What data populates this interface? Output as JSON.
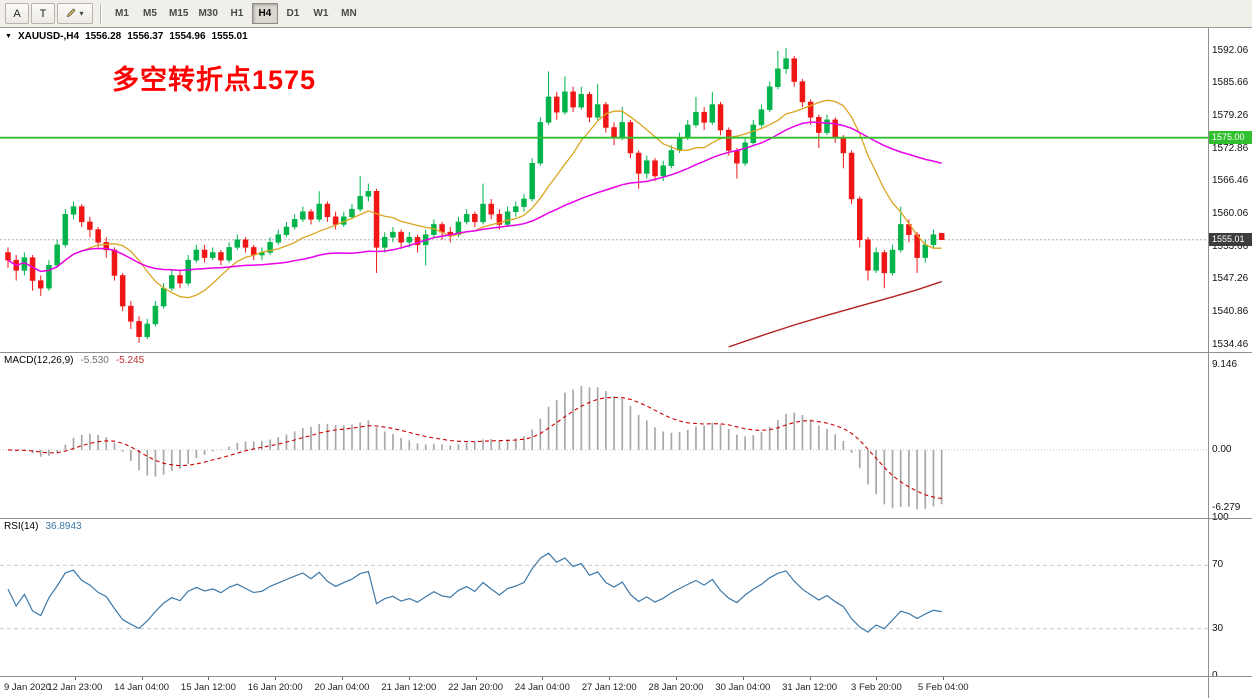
{
  "toolbar": {
    "cursor_button_label": "A",
    "text_button_label": "T",
    "timeframes": [
      "M1",
      "M5",
      "M15",
      "M30",
      "H1",
      "H4",
      "D1",
      "W1",
      "MN"
    ],
    "active_timeframe": "H4"
  },
  "chart": {
    "symbol_header": "XAUUSD-,H4",
    "ohlc": {
      "open": "1556.28",
      "high": "1556.37",
      "low": "1554.96",
      "close": "1555.01"
    },
    "annotation": {
      "text": "多空转折点1575",
      "color": "#FF0000"
    },
    "hline": {
      "label": "1575.00"
    },
    "current_price": {
      "label": "1555.01"
    }
  },
  "macd": {
    "title": "MACD(12,26,9)",
    "value_macd": "-5.530",
    "value_signal": "-5.245"
  },
  "rsi": {
    "title": "RSI(14)",
    "value": "36.8943"
  },
  "chart_data": {
    "type": "candlestick",
    "symbol": "XAUUSD-",
    "timeframe": "H4",
    "candles": [
      [
        1552.5,
        1553.5,
        1549.5,
        1551.0
      ],
      [
        1551.0,
        1552.0,
        1547.0,
        1549.0
      ],
      [
        1549.0,
        1552.5,
        1548.0,
        1551.5
      ],
      [
        1551.5,
        1552.0,
        1545.0,
        1547.0
      ],
      [
        1547.0,
        1548.0,
        1544.0,
        1545.5
      ],
      [
        1545.5,
        1551.0,
        1545.0,
        1550.0
      ],
      [
        1550.0,
        1555.0,
        1549.5,
        1554.0
      ],
      [
        1554.0,
        1561.0,
        1553.5,
        1560.0
      ],
      [
        1560.0,
        1562.5,
        1559.0,
        1561.5
      ],
      [
        1561.5,
        1562.0,
        1557.5,
        1558.5
      ],
      [
        1558.5,
        1559.5,
        1555.5,
        1557.0
      ],
      [
        1557.0,
        1557.5,
        1553.5,
        1554.5
      ],
      [
        1554.5,
        1555.5,
        1551.5,
        1553.0
      ],
      [
        1553.0,
        1553.5,
        1547.0,
        1548.0
      ],
      [
        1548.0,
        1548.5,
        1541.0,
        1542.0
      ],
      [
        1542.0,
        1543.0,
        1537.5,
        1539.0
      ],
      [
        1539.0,
        1540.0,
        1534.8,
        1536.0
      ],
      [
        1536.0,
        1539.5,
        1535.5,
        1538.5
      ],
      [
        1538.5,
        1543.0,
        1538.0,
        1542.0
      ],
      [
        1542.0,
        1546.5,
        1541.5,
        1545.5
      ],
      [
        1545.5,
        1549.0,
        1545.0,
        1548.0
      ],
      [
        1548.0,
        1549.0,
        1545.5,
        1546.5
      ],
      [
        1546.5,
        1552.0,
        1546.0,
        1551.0
      ],
      [
        1551.0,
        1554.0,
        1550.5,
        1553.0
      ],
      [
        1553.0,
        1554.0,
        1550.5,
        1551.5
      ],
      [
        1551.5,
        1553.5,
        1551.0,
        1552.5
      ],
      [
        1552.5,
        1553.0,
        1550.0,
        1551.0
      ],
      [
        1551.0,
        1554.5,
        1550.5,
        1553.5
      ],
      [
        1553.5,
        1556.0,
        1553.0,
        1555.0
      ],
      [
        1555.0,
        1555.5,
        1552.5,
        1553.5
      ],
      [
        1553.5,
        1554.0,
        1551.0,
        1552.0
      ],
      [
        1552.0,
        1553.5,
        1551.0,
        1552.5
      ],
      [
        1552.5,
        1555.5,
        1552.0,
        1554.5
      ],
      [
        1554.5,
        1557.0,
        1554.0,
        1556.0
      ],
      [
        1556.0,
        1558.5,
        1555.5,
        1557.5
      ],
      [
        1557.5,
        1560.0,
        1557.0,
        1559.0
      ],
      [
        1559.0,
        1561.5,
        1558.5,
        1560.5
      ],
      [
        1560.5,
        1561.0,
        1558.0,
        1559.0
      ],
      [
        1559.0,
        1564.5,
        1558.5,
        1562.0
      ],
      [
        1562.0,
        1562.5,
        1558.5,
        1559.5
      ],
      [
        1559.5,
        1560.5,
        1557.0,
        1558.0
      ],
      [
        1558.0,
        1560.5,
        1557.5,
        1559.5
      ],
      [
        1559.5,
        1562.0,
        1559.0,
        1561.0
      ],
      [
        1561.0,
        1567.5,
        1560.5,
        1563.5
      ],
      [
        1563.5,
        1566.0,
        1562.5,
        1564.5
      ],
      [
        1564.5,
        1565.0,
        1548.5,
        1553.5
      ],
      [
        1553.5,
        1556.5,
        1552.5,
        1555.5
      ],
      [
        1555.5,
        1557.5,
        1554.5,
        1556.5
      ],
      [
        1556.5,
        1557.0,
        1553.5,
        1554.5
      ],
      [
        1554.5,
        1556.5,
        1553.5,
        1555.5
      ],
      [
        1555.5,
        1556.0,
        1552.5,
        1554.0
      ],
      [
        1554.0,
        1557.0,
        1550.0,
        1556.0
      ],
      [
        1556.0,
        1559.0,
        1555.5,
        1558.0
      ],
      [
        1558.0,
        1558.5,
        1555.0,
        1556.5
      ],
      [
        1556.5,
        1557.5,
        1554.5,
        1556.0
      ],
      [
        1556.0,
        1559.5,
        1555.5,
        1558.5
      ],
      [
        1558.5,
        1561.0,
        1558.0,
        1560.0
      ],
      [
        1560.0,
        1560.5,
        1557.5,
        1558.5
      ],
      [
        1558.5,
        1566.0,
        1558.0,
        1562.0
      ],
      [
        1562.0,
        1563.0,
        1559.0,
        1560.0
      ],
      [
        1560.0,
        1561.0,
        1557.0,
        1558.0
      ],
      [
        1558.0,
        1561.5,
        1557.5,
        1560.5
      ],
      [
        1560.5,
        1562.5,
        1559.5,
        1561.5
      ],
      [
        1561.5,
        1564.0,
        1560.5,
        1563.0
      ],
      [
        1563.0,
        1571.0,
        1562.5,
        1570.0
      ],
      [
        1570.0,
        1579.0,
        1569.5,
        1578.0
      ],
      [
        1578.0,
        1588.0,
        1577.5,
        1583.0
      ],
      [
        1583.0,
        1584.0,
        1578.5,
        1580.0
      ],
      [
        1580.0,
        1587.0,
        1579.5,
        1584.0
      ],
      [
        1584.0,
        1585.0,
        1580.0,
        1581.0
      ],
      [
        1581.0,
        1585.0,
        1580.5,
        1583.5
      ],
      [
        1583.5,
        1584.0,
        1578.0,
        1579.0
      ],
      [
        1579.0,
        1585.5,
        1578.5,
        1581.5
      ],
      [
        1581.5,
        1582.0,
        1576.0,
        1577.0
      ],
      [
        1577.0,
        1578.0,
        1573.5,
        1575.0
      ],
      [
        1575.0,
        1581.0,
        1574.5,
        1578.0
      ],
      [
        1578.0,
        1578.5,
        1571.0,
        1572.0
      ],
      [
        1572.0,
        1572.5,
        1565.0,
        1568.0
      ],
      [
        1568.0,
        1571.5,
        1567.0,
        1570.5
      ],
      [
        1570.5,
        1571.0,
        1566.5,
        1567.5
      ],
      [
        1567.5,
        1570.5,
        1566.5,
        1569.5
      ],
      [
        1569.5,
        1573.5,
        1569.0,
        1572.5
      ],
      [
        1572.5,
        1576.0,
        1572.0,
        1575.0
      ],
      [
        1575.0,
        1578.5,
        1574.5,
        1577.5
      ],
      [
        1577.5,
        1583.0,
        1577.0,
        1580.0
      ],
      [
        1580.0,
        1581.0,
        1576.5,
        1578.0
      ],
      [
        1578.0,
        1584.0,
        1577.5,
        1581.5
      ],
      [
        1581.5,
        1582.0,
        1575.5,
        1576.5
      ],
      [
        1576.5,
        1577.0,
        1571.5,
        1572.5
      ],
      [
        1572.5,
        1573.0,
        1567.0,
        1570.0
      ],
      [
        1570.0,
        1575.0,
        1569.5,
        1574.0
      ],
      [
        1574.0,
        1578.5,
        1573.5,
        1577.5
      ],
      [
        1577.5,
        1581.5,
        1577.0,
        1580.5
      ],
      [
        1580.5,
        1586.0,
        1580.0,
        1585.0
      ],
      [
        1585.0,
        1592.0,
        1584.5,
        1588.5
      ],
      [
        1588.5,
        1592.6,
        1587.5,
        1590.5
      ],
      [
        1590.5,
        1591.0,
        1585.0,
        1586.0
      ],
      [
        1586.0,
        1586.5,
        1581.0,
        1582.0
      ],
      [
        1582.0,
        1582.5,
        1577.5,
        1579.0
      ],
      [
        1579.0,
        1579.5,
        1573.0,
        1576.0
      ],
      [
        1576.0,
        1579.5,
        1575.5,
        1578.5
      ],
      [
        1578.5,
        1579.0,
        1574.0,
        1575.0
      ],
      [
        1575.0,
        1575.5,
        1569.0,
        1572.0
      ],
      [
        1572.0,
        1572.5,
        1562.0,
        1563.0
      ],
      [
        1563.0,
        1563.5,
        1553.5,
        1555.0
      ],
      [
        1555.0,
        1555.5,
        1547.0,
        1549.0
      ],
      [
        1549.0,
        1553.5,
        1548.5,
        1552.5
      ],
      [
        1552.5,
        1553.0,
        1545.5,
        1548.5
      ],
      [
        1548.5,
        1554.0,
        1548.0,
        1553.0
      ],
      [
        1553.0,
        1561.5,
        1552.5,
        1558.0
      ],
      [
        1558.0,
        1559.0,
        1554.5,
        1556.0
      ],
      [
        1556.0,
        1556.5,
        1548.5,
        1551.5
      ],
      [
        1551.5,
        1555.0,
        1550.5,
        1554.0
      ],
      [
        1554.0,
        1557.0,
        1553.5,
        1556.0
      ],
      [
        1556.28,
        1556.37,
        1554.96,
        1555.01
      ]
    ],
    "overlays": {
      "ma_fast_period": 10,
      "ma_slow_period": 34,
      "ma_long_points": [
        [
          88,
          1534.0
        ],
        [
          92,
          1536.2
        ],
        [
          96,
          1538.3
        ],
        [
          100,
          1540.2
        ],
        [
          104,
          1542.0
        ],
        [
          108,
          1543.8
        ],
        [
          111,
          1545.2
        ],
        [
          114,
          1546.8
        ]
      ],
      "hline": 1575.0,
      "bid_line": 1555.01
    },
    "indicators": {
      "macd": {
        "fast": 12,
        "slow": 26,
        "signal": 9,
        "current_macd": -5.53,
        "current_signal": -5.245,
        "axis_max": 10.5,
        "axis_min": -7.3,
        "axis_labels": [
          {
            "v": 9.146,
            "t": "9.146"
          },
          {
            "v": 0,
            "t": "0.00"
          },
          {
            "v": -6.279,
            "t": "-6.279"
          }
        ]
      },
      "rsi": {
        "period": 14,
        "current": 36.8943,
        "axis_labels": [
          100,
          70,
          30,
          0
        ],
        "levels": [
          70,
          30
        ]
      }
    },
    "y_axis": {
      "max": 1596.5,
      "min": 1533.0,
      "tick_labels": [
        1592.06,
        1585.66,
        1579.26,
        1572.86,
        1566.46,
        1560.06,
        1553.66,
        1547.26,
        1540.86,
        1534.46
      ]
    },
    "x_axis_labels": [
      "9 Jan 2020",
      "12 Jan 23:00",
      "14 Jan 04:00",
      "15 Jan 12:00",
      "16 Jan 20:00",
      "20 Jan 04:00",
      "21 Jan 12:00",
      "22 Jan 20:00",
      "24 Jan 04:00",
      "27 Jan 12:00",
      "28 Jan 20:00",
      "30 Jan 04:00",
      "31 Jan 12:00",
      "3 Feb 20:00",
      "5 Feb 04:00"
    ],
    "colors": {
      "up": "#00B44B",
      "down": "#F01616",
      "ma_fast": "#DAA520",
      "ma_slow": "#E800E8",
      "ma_long": "#B22222",
      "macd_hist": "#a8a8a8",
      "macd_signal": "#CC0000",
      "rsi": "#3C78A8",
      "hline": "#2fbf2f"
    }
  }
}
